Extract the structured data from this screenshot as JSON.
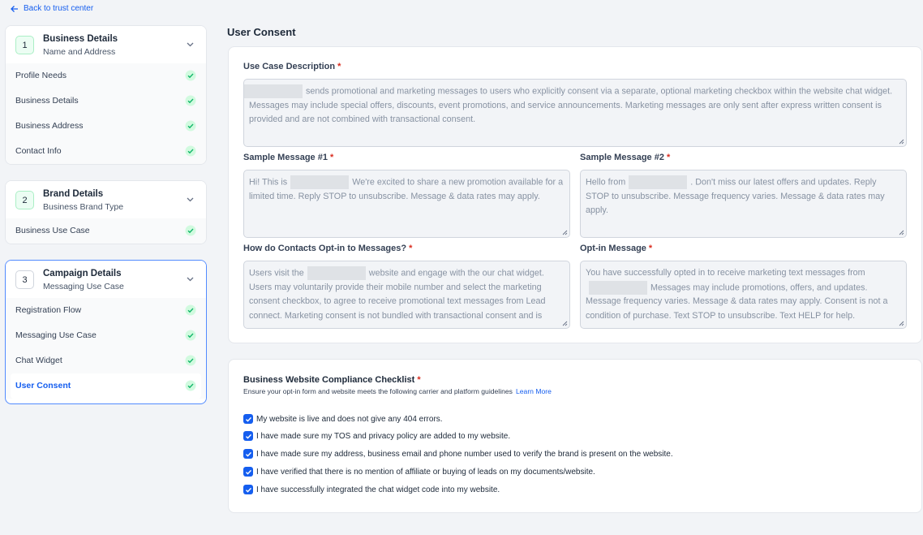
{
  "back_link": "Back to trust center",
  "steps": [
    {
      "number": "1",
      "title": "Business Details",
      "subtitle": "Name and Address",
      "items": [
        "Profile Needs",
        "Business Details",
        "Business Address",
        "Contact Info"
      ]
    },
    {
      "number": "2",
      "title": "Brand Details",
      "subtitle": "Business Brand Type",
      "items": [
        "Business Use Case"
      ]
    },
    {
      "number": "3",
      "title": "Campaign Details",
      "subtitle": "Messaging Use Case",
      "items": [
        "Registration Flow",
        "Messaging Use Case",
        "Chat Widget",
        "User Consent"
      ]
    }
  ],
  "section_title": "User Consent",
  "required_mark": "*",
  "fields": [
    {
      "label": "Use Case Description",
      "value": [
        "sends promotional and marketing messages to users who explicitly consent via a separate, optional marketing checkbox within the website chat widget. Messages may include special offers, discounts, event promotions, and service announcements. Marketing messages are only sent after express written consent is provided and are not combined with transactional consent."
      ]
    },
    {
      "label": "Sample Message #1",
      "value": [
        "Hi! This is",
        "We're excited to share a new promotion available for a limited time. Reply STOP to unsubscribe. Message & data rates may apply."
      ]
    },
    {
      "label": "Sample Message #2",
      "value": [
        "Hello from",
        ". Don't miss our latest offers and updates. Reply STOP to unsubscribe. Message frequency varies. Message & data rates may apply."
      ]
    },
    {
      "label": "How do Contacts Opt-in to Messages?",
      "value": [
        "Users visit the",
        "website and engage with the our chat widget. Users may voluntarily  provide their mobile number and select the marketing consent checkbox, to agree to receive promotional text messages from Lead connect. Marketing consent is not bundled with transactional consent and is"
      ]
    },
    {
      "label": "Opt-in Message",
      "value": [
        "You have successfully opted in to receive marketing text messages from",
        "Messages may include promotions, offers, and updates. Message frequency varies. Message & data rates may apply. Consent is not a condition of purchase. Text STOP to unsubscribe. Text HELP for help."
      ]
    }
  ],
  "checklist": {
    "title": "Business Website Compliance Checklist",
    "description": "Ensure your opt-in form and website meets the following carrier and platform guidelines",
    "link": "Learn More",
    "items": [
      "My website is live and does not give any 404 errors.",
      "I have made sure my TOS and privacy policy are added to my website.",
      "I have made sure my address, business email and phone number used to verify the brand is present on the website.",
      "I have verified that there is no mention of affiliate or buying of leads on my documents/website.",
      "I have successfully integrated the chat widget code into my website."
    ]
  }
}
